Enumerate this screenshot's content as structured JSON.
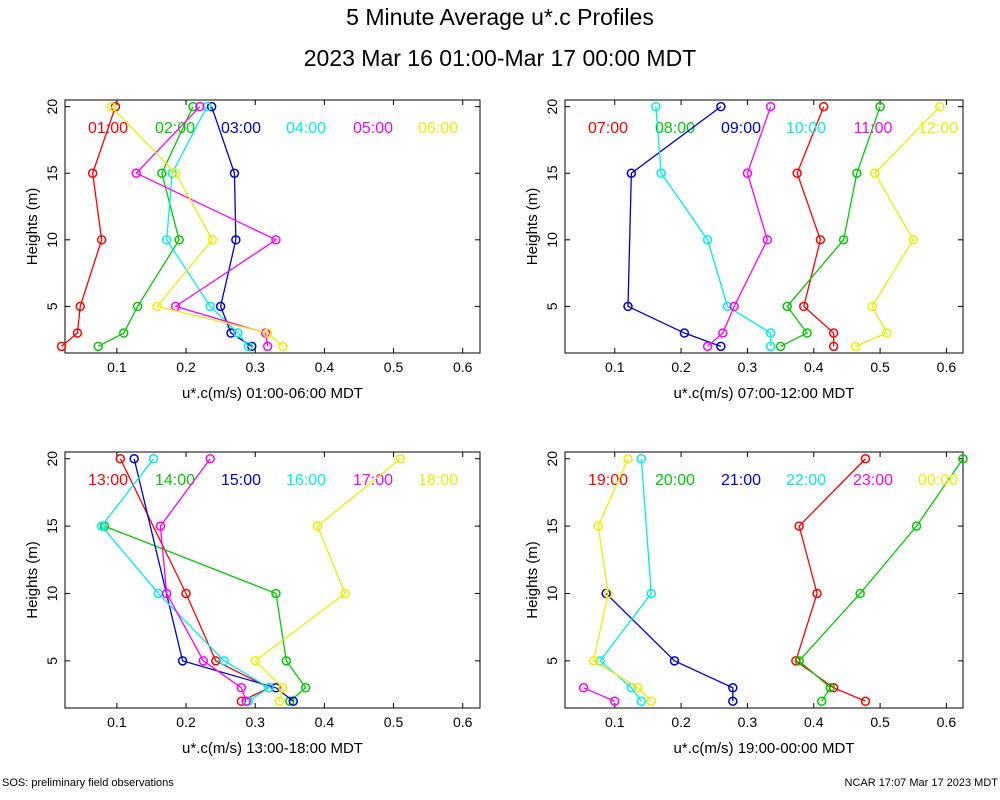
{
  "title": "5 Minute Average u*.c Profiles",
  "subtitle": "2023 Mar 16 01:00-Mar 17 00:00 MDT",
  "footer_left": "SOS: preliminary field observations",
  "footer_right": "NCAR 17:07 Mar 17 2023 MDT",
  "colors": {
    "red": "#ff0000",
    "green": "#00cc00",
    "blue": "#0000cc",
    "cyan": "#00eeee",
    "magenta": "#ff00ff",
    "yellow": "#eeee00"
  },
  "chart_data": [
    {
      "type": "line",
      "xlabel": "u*.c(m/s) 01:00-06:00 MDT",
      "ylabel": "Heights (m)",
      "xlim": [
        0.025,
        0.625
      ],
      "ylim": [
        1.5,
        20.5
      ],
      "xticks": [
        0.1,
        0.2,
        0.3,
        0.4,
        0.5,
        0.6
      ],
      "yticks": [
        5,
        10,
        15,
        20
      ],
      "legend_position": "top",
      "series": [
        {
          "name": "01:00",
          "color": "#ff0000",
          "points": [
            [
              0.02,
              2
            ],
            [
              0.043,
              3
            ],
            [
              0.047,
              5
            ],
            [
              0.078,
              10
            ],
            [
              0.065,
              15
            ],
            [
              0.098,
              20
            ]
          ]
        },
        {
          "name": "02:00",
          "color": "#00cc00",
          "points": [
            [
              0.073,
              2
            ],
            [
              0.11,
              3
            ],
            [
              0.13,
              5
            ],
            [
              0.19,
              10
            ],
            [
              0.165,
              15
            ],
            [
              0.21,
              20
            ]
          ]
        },
        {
          "name": "03:00",
          "color": "#0000cc",
          "points": [
            [
              0.295,
              2
            ],
            [
              0.265,
              3
            ],
            [
              0.25,
              5
            ],
            [
              0.272,
              10
            ],
            [
              0.27,
              15
            ],
            [
              0.237,
              20
            ]
          ]
        },
        {
          "name": "04:00",
          "color": "#00eeee",
          "points": [
            [
              0.29,
              2
            ],
            [
              0.275,
              3
            ],
            [
              0.235,
              5
            ],
            [
              0.172,
              10
            ],
            [
              0.18,
              15
            ],
            [
              0.23,
              20
            ]
          ]
        },
        {
          "name": "05:00",
          "color": "#ff00ff",
          "points": [
            [
              0.318,
              2
            ],
            [
              0.315,
              3
            ],
            [
              0.185,
              5
            ],
            [
              0.33,
              10
            ],
            [
              0.128,
              15
            ],
            [
              0.22,
              20
            ]
          ]
        },
        {
          "name": "06:00",
          "color": "#eeee00",
          "points": [
            [
              0.34,
              2
            ],
            [
              0.318,
              3
            ],
            [
              0.158,
              5
            ],
            [
              0.238,
              10
            ],
            [
              0.185,
              15
            ],
            [
              0.092,
              20
            ]
          ]
        }
      ]
    },
    {
      "type": "line",
      "xlabel": "u*.c(m/s) 07:00-12:00 MDT",
      "ylabel": "Heights (m)",
      "xlim": [
        0.025,
        0.625
      ],
      "ylim": [
        1.5,
        20.5
      ],
      "xticks": [
        0.1,
        0.2,
        0.3,
        0.4,
        0.5,
        0.6
      ],
      "yticks": [
        5,
        10,
        15,
        20
      ],
      "legend_position": "top",
      "series": [
        {
          "name": "07:00",
          "color": "#ff0000",
          "points": [
            [
              0.43,
              2
            ],
            [
              0.43,
              3
            ],
            [
              0.385,
              5
            ],
            [
              0.41,
              10
            ],
            [
              0.375,
              15
            ],
            [
              0.415,
              20
            ]
          ]
        },
        {
          "name": "08:00",
          "color": "#00cc00",
          "points": [
            [
              0.35,
              2
            ],
            [
              0.39,
              3
            ],
            [
              0.36,
              5
            ],
            [
              0.445,
              10
            ],
            [
              0.465,
              15
            ],
            [
              0.5,
              20
            ]
          ]
        },
        {
          "name": "09:00",
          "color": "#0000cc",
          "points": [
            [
              0.26,
              2
            ],
            [
              0.205,
              3
            ],
            [
              0.12,
              5
            ],
            [
              0.125,
              15
            ],
            [
              0.26,
              20
            ]
          ]
        },
        {
          "name": "10:00",
          "color": "#00eeee",
          "points": [
            [
              0.335,
              2
            ],
            [
              0.335,
              3
            ],
            [
              0.27,
              5
            ],
            [
              0.24,
              10
            ],
            [
              0.17,
              15
            ],
            [
              0.162,
              20
            ]
          ]
        },
        {
          "name": "11:00",
          "color": "#ff00ff",
          "points": [
            [
              0.24,
              2
            ],
            [
              0.263,
              3
            ],
            [
              0.28,
              5
            ],
            [
              0.33,
              10
            ],
            [
              0.3,
              15
            ],
            [
              0.335,
              20
            ]
          ]
        },
        {
          "name": "12:00",
          "color": "#eeee00",
          "points": [
            [
              0.463,
              2
            ],
            [
              0.51,
              3
            ],
            [
              0.488,
              5
            ],
            [
              0.55,
              10
            ],
            [
              0.492,
              15
            ],
            [
              0.59,
              20
            ]
          ]
        }
      ]
    },
    {
      "type": "line",
      "xlabel": "u*.c(m/s) 13:00-18:00 MDT",
      "ylabel": "Heights (m)",
      "xlim": [
        0.025,
        0.625
      ],
      "ylim": [
        1.5,
        20.5
      ],
      "xticks": [
        0.1,
        0.2,
        0.3,
        0.4,
        0.5,
        0.6
      ],
      "yticks": [
        5,
        10,
        15,
        20
      ],
      "legend_position": "top",
      "series": [
        {
          "name": "13:00",
          "color": "#ff0000",
          "points": [
            [
              0.28,
              2
            ],
            [
              0.32,
              3
            ],
            [
              0.243,
              5
            ],
            [
              0.2,
              10
            ],
            [
              0.105,
              20
            ]
          ]
        },
        {
          "name": "14:00",
          "color": "#00cc00",
          "points": [
            [
              0.35,
              2
            ],
            [
              0.373,
              3
            ],
            [
              0.345,
              5
            ],
            [
              0.33,
              10
            ],
            [
              0.082,
              15
            ]
          ]
        },
        {
          "name": "15:00",
          "color": "#0000cc",
          "points": [
            [
              0.355,
              2
            ],
            [
              0.33,
              3
            ],
            [
              0.195,
              5
            ],
            [
              0.125,
              20
            ]
          ]
        },
        {
          "name": "16:00",
          "color": "#00eeee",
          "points": [
            [
              0.29,
              2
            ],
            [
              0.32,
              3
            ],
            [
              0.255,
              5
            ],
            [
              0.16,
              10
            ],
            [
              0.078,
              15
            ],
            [
              0.153,
              20
            ]
          ]
        },
        {
          "name": "17:00",
          "color": "#ff00ff",
          "points": [
            [
              0.287,
              2
            ],
            [
              0.28,
              3
            ],
            [
              0.225,
              5
            ],
            [
              0.172,
              10
            ],
            [
              0.163,
              15
            ],
            [
              0.235,
              20
            ]
          ]
        },
        {
          "name": "18:00",
          "color": "#eeee00",
          "points": [
            [
              0.335,
              2
            ],
            [
              0.34,
              3
            ],
            [
              0.3,
              5
            ],
            [
              0.43,
              10
            ],
            [
              0.39,
              15
            ],
            [
              0.51,
              20
            ]
          ]
        }
      ]
    },
    {
      "type": "line",
      "xlabel": "u*.c(m/s) 19:00-00:00 MDT",
      "ylabel": "Heights (m)",
      "xlim": [
        0.025,
        0.625
      ],
      "ylim": [
        1.5,
        20.5
      ],
      "xticks": [
        0.1,
        0.2,
        0.3,
        0.4,
        0.5,
        0.6
      ],
      "yticks": [
        5,
        10,
        15,
        20
      ],
      "legend_position": "top",
      "series": [
        {
          "name": "19:00",
          "color": "#ff0000",
          "points": [
            [
              0.478,
              2
            ],
            [
              0.43,
              3
            ],
            [
              0.373,
              5
            ],
            [
              0.405,
              10
            ],
            [
              0.378,
              15
            ],
            [
              0.478,
              20
            ]
          ]
        },
        {
          "name": "20:00",
          "color": "#00cc00",
          "points": [
            [
              0.412,
              2
            ],
            [
              0.425,
              3
            ],
            [
              0.378,
              5
            ],
            [
              0.47,
              10
            ],
            [
              0.555,
              15
            ],
            [
              0.625,
              20
            ]
          ]
        },
        {
          "name": "21:00",
          "color": "#0000cc",
          "points": [
            [
              0.278,
              2
            ],
            [
              0.278,
              3
            ],
            [
              0.19,
              5
            ],
            [
              0.087,
              10
            ]
          ]
        },
        {
          "name": "22:00",
          "color": "#00eeee",
          "points": [
            [
              0.14,
              2
            ],
            [
              0.125,
              3
            ],
            [
              0.078,
              5
            ],
            [
              0.155,
              10
            ],
            [
              0.14,
              20
            ]
          ]
        },
        {
          "name": "23:00",
          "color": "#ff00ff",
          "points": [
            [
              0.1,
              2
            ],
            [
              0.053,
              3
            ]
          ]
        },
        {
          "name": "00:00",
          "color": "#eeee00",
          "points": [
            [
              0.155,
              2
            ],
            [
              0.135,
              3
            ],
            [
              0.068,
              5
            ],
            [
              0.09,
              10
            ],
            [
              0.075,
              15
            ],
            [
              0.12,
              20
            ]
          ]
        }
      ]
    }
  ]
}
